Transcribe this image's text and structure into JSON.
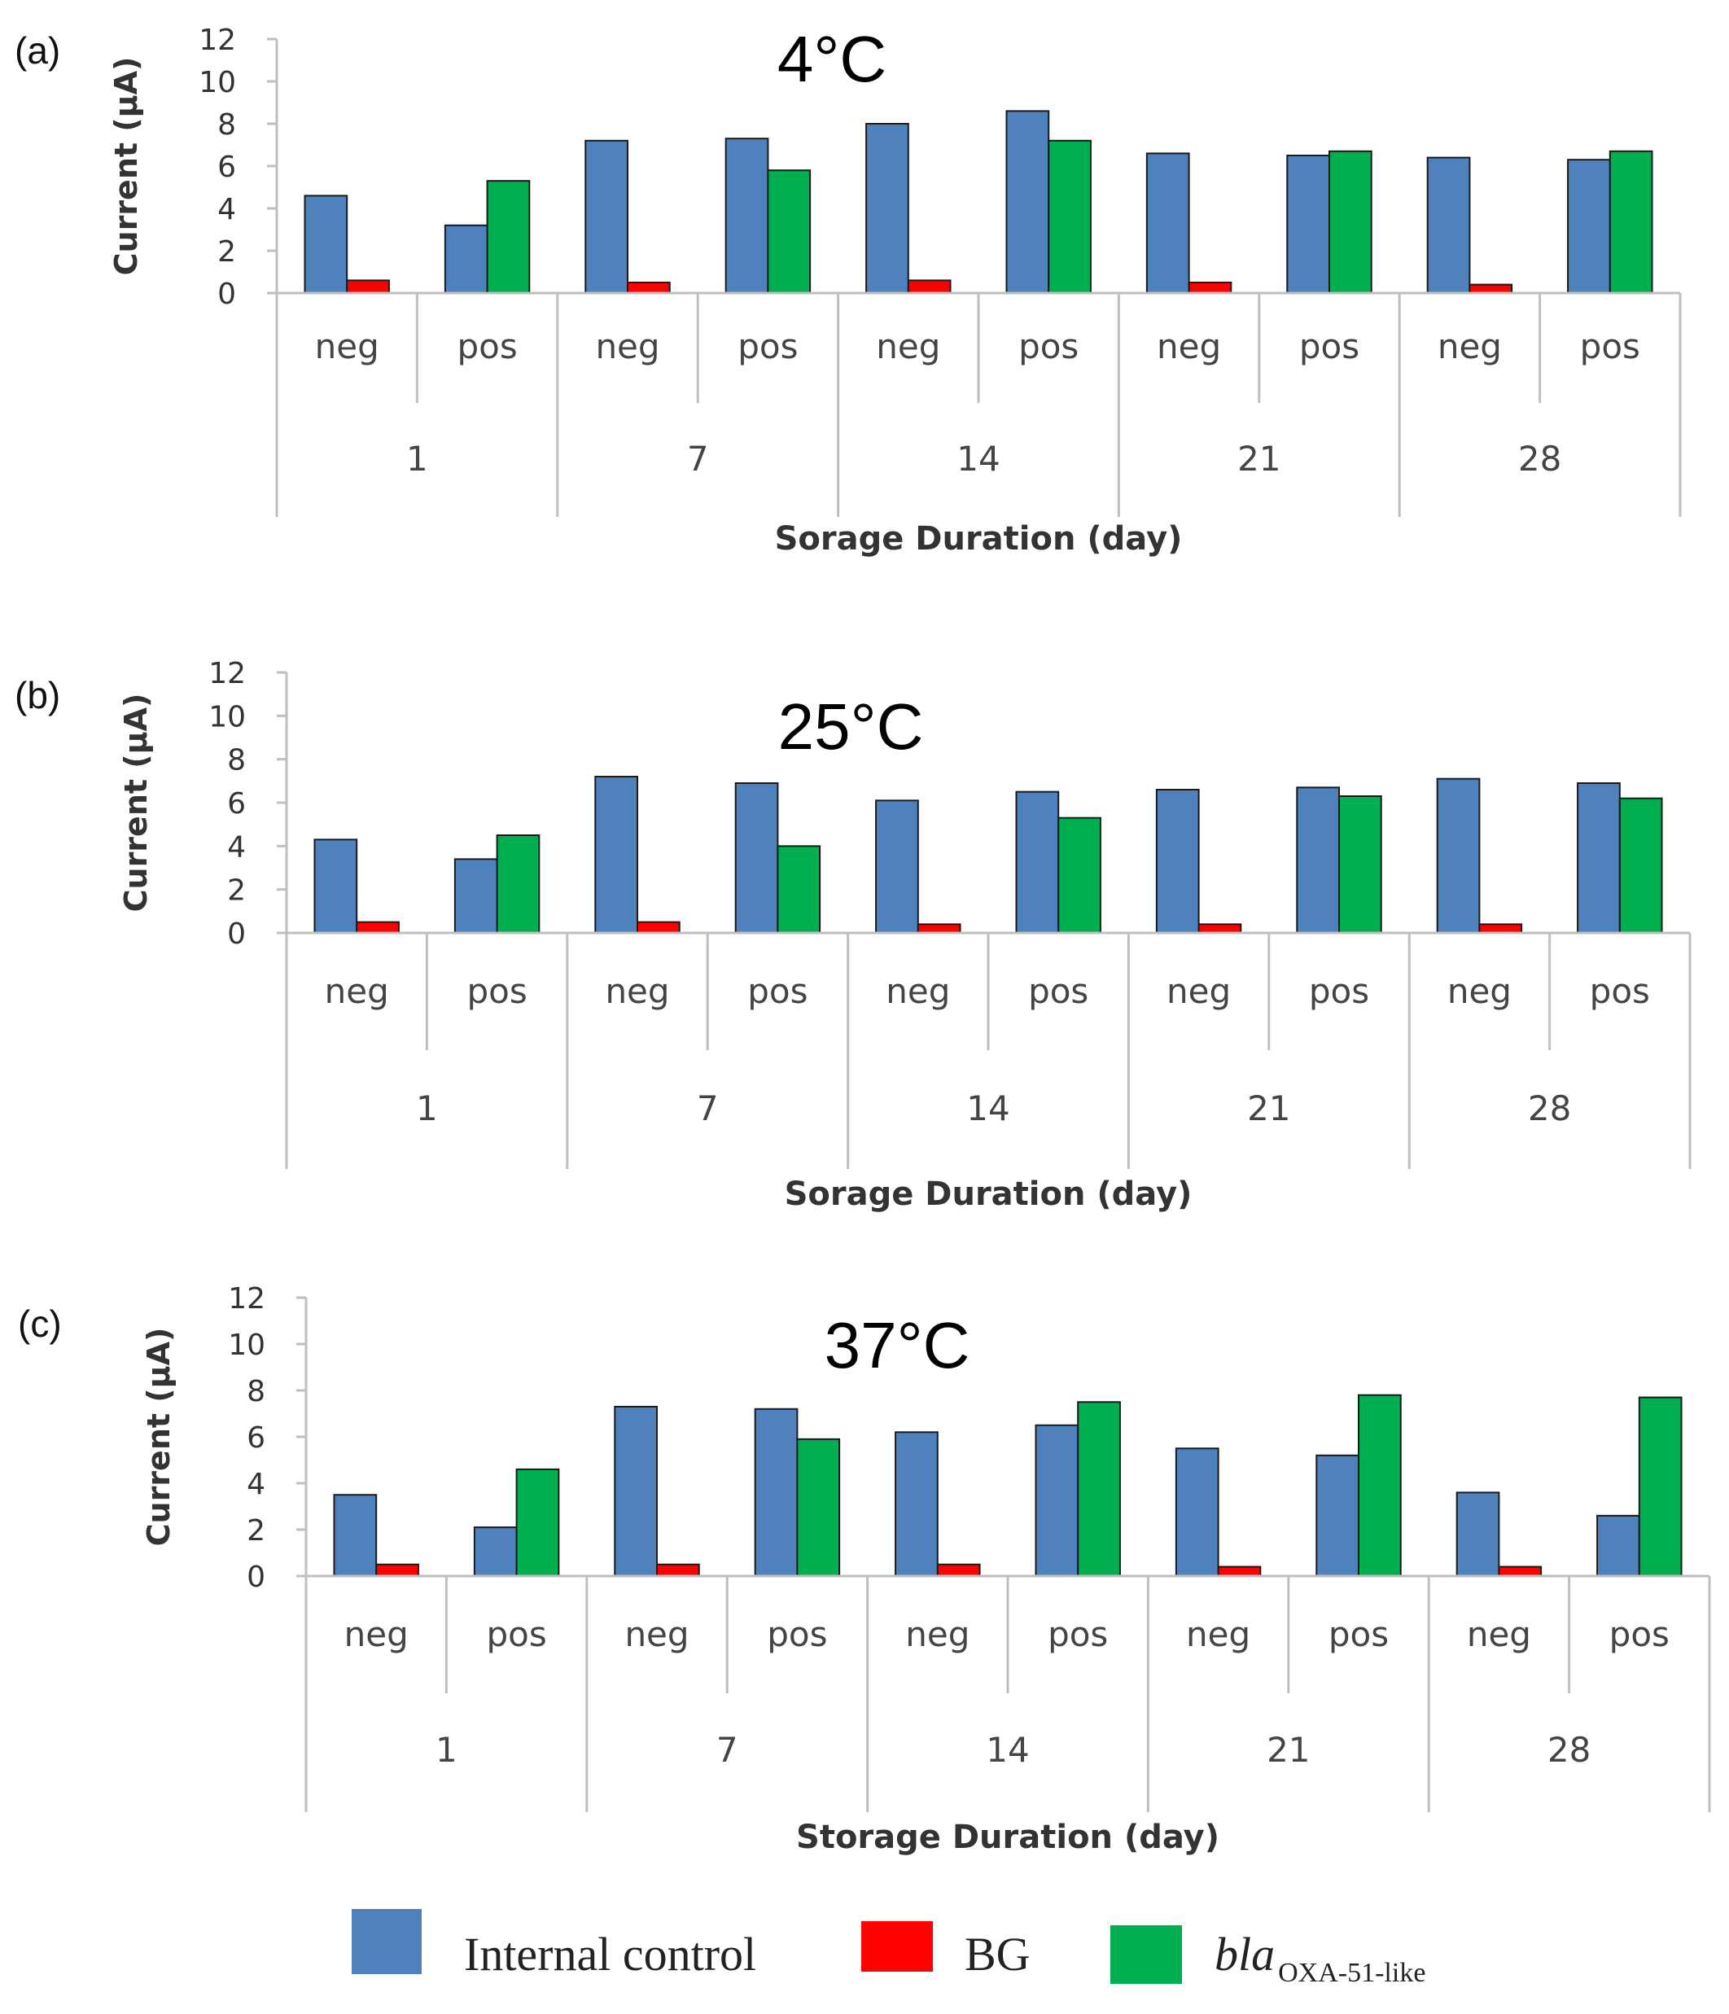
{
  "chart_data": [
    {
      "type": "bar",
      "panel": "(a)",
      "title": "4°C",
      "ylabel": "Current (µA)",
      "xlabel": "Sorage Duration (day)",
      "ylim": [
        0,
        12
      ],
      "yticks": [
        0,
        2,
        4,
        6,
        8,
        10,
        12
      ],
      "groups": [
        "1",
        "7",
        "14",
        "21",
        "28"
      ],
      "subgroups": [
        "neg",
        "pos"
      ],
      "series": [
        {
          "name": "Internal control",
          "values": [
            4.6,
            3.2,
            7.2,
            7.3,
            8.0,
            8.6,
            6.6,
            6.5,
            6.4,
            6.3
          ]
        },
        {
          "name": "BG",
          "values": [
            0.6,
            0.0,
            0.5,
            0.0,
            0.6,
            0.0,
            0.5,
            0.0,
            0.4,
            0.0
          ]
        },
        {
          "name": "blaOXA-51-like",
          "values": [
            0.0,
            5.3,
            0.0,
            5.8,
            0.0,
            7.2,
            0.0,
            6.7,
            0.0,
            6.7
          ]
        }
      ]
    },
    {
      "type": "bar",
      "panel": "(b)",
      "title": "25°C",
      "ylabel": "Current (µA)",
      "xlabel": "Sorage Duration (day)",
      "ylim": [
        0,
        12
      ],
      "yticks": [
        0,
        2,
        4,
        6,
        8,
        10,
        12
      ],
      "groups": [
        "1",
        "7",
        "14",
        "21",
        "28"
      ],
      "subgroups": [
        "neg",
        "pos"
      ],
      "series": [
        {
          "name": "Internal control",
          "values": [
            4.3,
            3.4,
            7.2,
            6.9,
            6.1,
            6.5,
            6.6,
            6.7,
            7.1,
            6.9
          ]
        },
        {
          "name": "BG",
          "values": [
            0.5,
            0.0,
            0.5,
            0.0,
            0.4,
            0.0,
            0.4,
            0.0,
            0.4,
            0.0
          ]
        },
        {
          "name": "blaOXA-51-like",
          "values": [
            0.0,
            4.5,
            0.0,
            4.0,
            0.0,
            5.3,
            0.0,
            6.3,
            0.0,
            6.2
          ]
        }
      ]
    },
    {
      "type": "bar",
      "panel": "(c)",
      "title": "37°C",
      "ylabel": "Current (µA)",
      "xlabel": "Storage Duration (day)",
      "ylim": [
        0,
        12
      ],
      "yticks": [
        0,
        2,
        4,
        6,
        8,
        10,
        12
      ],
      "groups": [
        "1",
        "7",
        "14",
        "21",
        "28"
      ],
      "subgroups": [
        "neg",
        "pos"
      ],
      "series": [
        {
          "name": "Internal control",
          "values": [
            3.5,
            2.1,
            7.3,
            7.2,
            6.2,
            6.5,
            5.5,
            5.2,
            3.6,
            2.6
          ]
        },
        {
          "name": "BG",
          "values": [
            0.5,
            0.0,
            0.5,
            0.0,
            0.5,
            0.0,
            0.4,
            0.0,
            0.4,
            0.0
          ]
        },
        {
          "name": "blaOXA-51-like",
          "values": [
            0.0,
            4.6,
            0.0,
            5.9,
            0.0,
            7.5,
            0.0,
            7.8,
            0.0,
            7.7
          ]
        }
      ]
    }
  ],
  "legend": {
    "items": [
      {
        "label": "Internal control",
        "color": "#4f81bd"
      },
      {
        "label": "BG",
        "color": "#ff0000"
      },
      {
        "label_main": "bla",
        "label_sub": "OXA-51-like",
        "color": "#00b050"
      }
    ]
  },
  "colors": {
    "series": [
      "#4f81bd",
      "#ff0000",
      "#00b050"
    ],
    "edge": "#1a1a1a",
    "axis": "#bfbfbf"
  }
}
